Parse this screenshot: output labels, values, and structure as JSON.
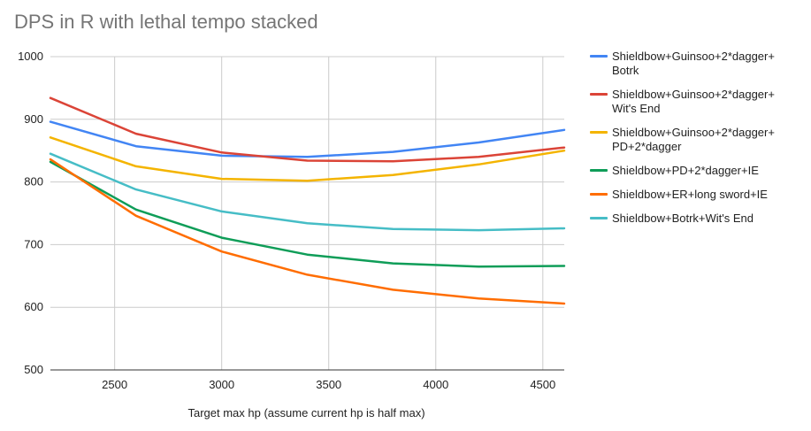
{
  "chart_data": {
    "type": "line",
    "title": "DPS in R with lethal tempo stacked",
    "xlabel": "Target max hp (assume current hp is half max)",
    "ylabel": "",
    "x": [
      2200,
      2600,
      3000,
      3400,
      3800,
      4200,
      4600
    ],
    "xlim": [
      2200,
      4600
    ],
    "ylim": [
      500,
      1000
    ],
    "xticks": [
      2500,
      3000,
      3500,
      4000,
      4500
    ],
    "yticks": [
      500,
      600,
      700,
      800,
      900,
      1000
    ],
    "grid": true,
    "legend_position": "right",
    "series": [
      {
        "name": "Shieldbow+Guinsoo+2*dagger+Botrk",
        "lines": [
          "Shieldbow+Guinsoo+2*dagger+",
          "Botrk"
        ],
        "color": "#4285f4",
        "values": [
          896,
          857,
          842,
          840,
          848,
          863,
          883
        ]
      },
      {
        "name": "Shieldbow+Guinsoo+2*dagger+Wit's End",
        "lines": [
          "Shieldbow+Guinsoo+2*dagger+",
          "Wit's End"
        ],
        "color": "#db4437",
        "values": [
          934,
          877,
          847,
          834,
          833,
          840,
          855
        ]
      },
      {
        "name": "Shieldbow+Guinsoo+2*dagger+PD+2*dagger",
        "lines": [
          "Shieldbow+Guinsoo+2*dagger+",
          "PD+2*dagger"
        ],
        "color": "#f4b400",
        "values": [
          871,
          825,
          805,
          802,
          811,
          828,
          850
        ]
      },
      {
        "name": "Shieldbow+PD+2*dagger+IE",
        "lines": [
          "Shieldbow+PD+2*dagger+IE"
        ],
        "color": "#0f9d58",
        "values": [
          832,
          756,
          711,
          684,
          670,
          665,
          666
        ]
      },
      {
        "name": "Shieldbow+ER+long sword+IE",
        "lines": [
          "Shieldbow+ER+long sword+IE"
        ],
        "color": "#ff6d01",
        "values": [
          836,
          746,
          689,
          652,
          628,
          614,
          606
        ]
      },
      {
        "name": "Shieldbow+Botrk+Wit's End",
        "lines": [
          "Shieldbow+Botrk+Wit's End"
        ],
        "color": "#46bdc6",
        "values": [
          845,
          788,
          753,
          734,
          725,
          723,
          726
        ]
      }
    ]
  }
}
